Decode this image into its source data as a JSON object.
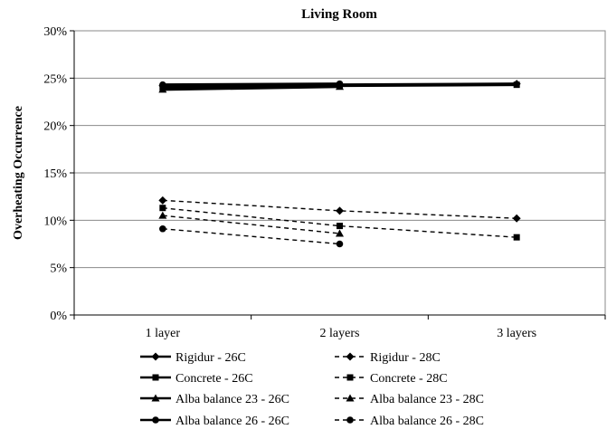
{
  "chart_data": {
    "type": "line",
    "title": "Living Room",
    "xlabel": "",
    "ylabel": "Overheating Occurrence",
    "categories": [
      "1 layer",
      "2 layers",
      "3 layers"
    ],
    "ylim": [
      0,
      30
    ],
    "y_ticks": [
      "0%",
      "5%",
      "10%",
      "15%",
      "20%",
      "25%",
      "30%"
    ],
    "grid": true,
    "legend_position": "bottom",
    "series": [
      {
        "name": "Rigidur - 26C",
        "values": [
          24.2,
          24.3,
          24.4
        ],
        "marker": "diamond",
        "dash": "solid"
      },
      {
        "name": "Rigidur - 28C",
        "values": [
          12.1,
          11.0,
          10.2
        ],
        "marker": "diamond",
        "dash": "dashed"
      },
      {
        "name": "Concrete - 26C",
        "values": [
          24.0,
          24.2,
          24.3
        ],
        "marker": "square",
        "dash": "solid"
      },
      {
        "name": "Concrete - 28C",
        "values": [
          11.3,
          9.4,
          8.2
        ],
        "marker": "square",
        "dash": "dashed"
      },
      {
        "name": "Alba balance 23 - 26C",
        "values": [
          23.8,
          24.1,
          null
        ],
        "marker": "triangle",
        "dash": "solid"
      },
      {
        "name": "Alba balance 23 - 28C",
        "values": [
          10.5,
          8.6,
          null
        ],
        "marker": "triangle",
        "dash": "dashed"
      },
      {
        "name": "Alba balance 26 - 26C",
        "values": [
          24.3,
          24.4,
          null
        ],
        "marker": "circle",
        "dash": "solid"
      },
      {
        "name": "Alba balance 26 - 28C",
        "values": [
          9.1,
          7.5,
          null
        ],
        "marker": "circle",
        "dash": "dashed"
      }
    ]
  }
}
